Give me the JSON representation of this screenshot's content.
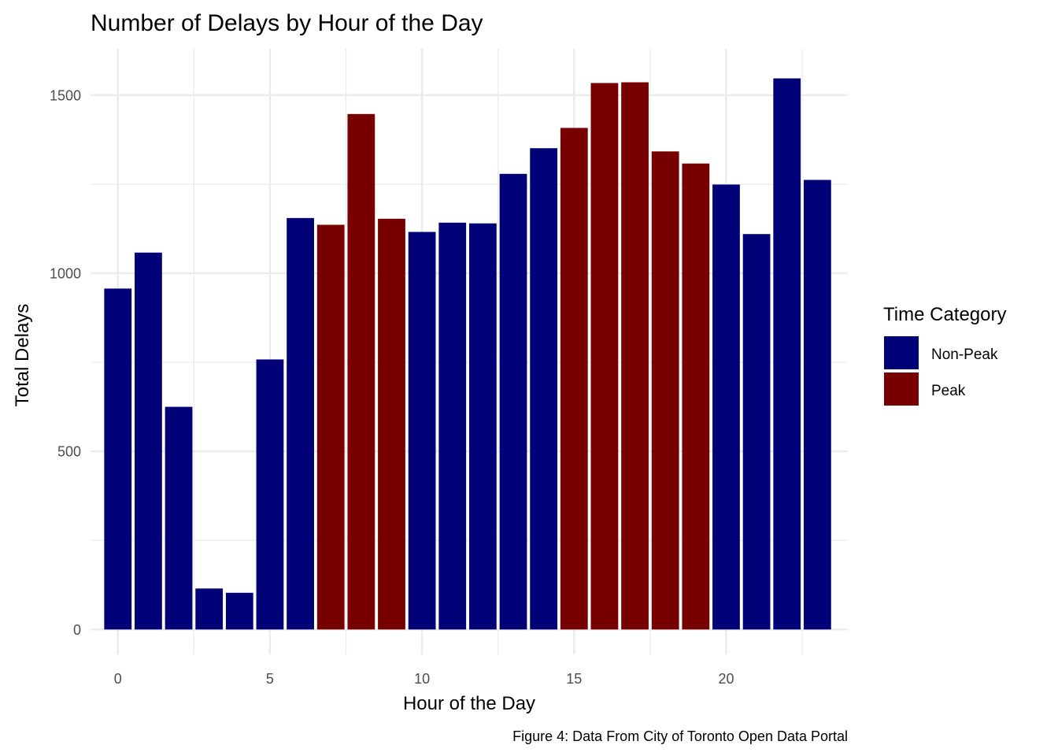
{
  "chart_data": {
    "type": "bar",
    "title": "Number of Delays by Hour of the Day",
    "xlabel": "Hour of the Day",
    "ylabel": "Total Delays",
    "caption": "Figure 4: Data From City of Toronto Open Data Portal",
    "x": [
      0,
      1,
      2,
      3,
      4,
      5,
      6,
      7,
      8,
      9,
      10,
      11,
      12,
      13,
      14,
      15,
      16,
      17,
      18,
      19,
      20,
      21,
      22,
      23
    ],
    "values": [
      957,
      1058,
      625,
      115,
      103,
      758,
      1155,
      1136,
      1447,
      1153,
      1116,
      1142,
      1140,
      1279,
      1351,
      1408,
      1534,
      1536,
      1342,
      1308,
      1249,
      1110,
      1547,
      1262
    ],
    "category": [
      "Non-Peak",
      "Non-Peak",
      "Non-Peak",
      "Non-Peak",
      "Non-Peak",
      "Non-Peak",
      "Non-Peak",
      "Peak",
      "Peak",
      "Peak",
      "Non-Peak",
      "Non-Peak",
      "Non-Peak",
      "Non-Peak",
      "Non-Peak",
      "Peak",
      "Peak",
      "Peak",
      "Peak",
      "Peak",
      "Non-Peak",
      "Non-Peak",
      "Non-Peak",
      "Non-Peak"
    ],
    "xlim": [
      -0.9,
      24
    ],
    "ylim": [
      -70,
      1630
    ],
    "x_ticks": [
      0,
      5,
      10,
      15,
      20
    ],
    "x_tick_labels": [
      "0",
      "5",
      "10",
      "15",
      "20"
    ],
    "y_ticks": [
      0,
      500,
      1000,
      1500
    ],
    "y_tick_labels": [
      "0",
      "500",
      "1000",
      "1500"
    ],
    "grid": true,
    "legend": {
      "title": "Time Category",
      "placement": "right",
      "entries": [
        {
          "label": "Non-Peak",
          "color": "#000077"
        },
        {
          "label": "Peak",
          "color": "#770000"
        }
      ]
    },
    "colors": {
      "Non-Peak": "#000077",
      "Peak": "#770000"
    }
  }
}
